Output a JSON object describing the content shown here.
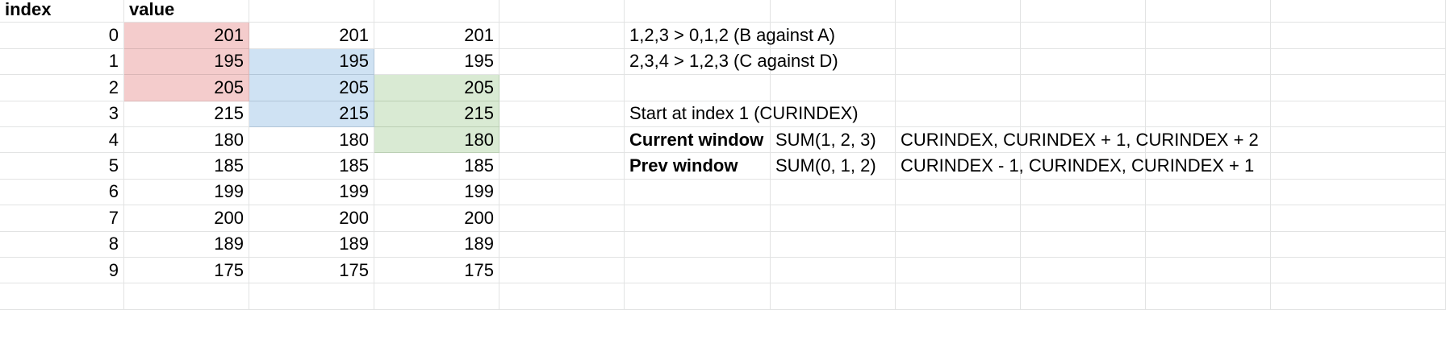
{
  "sheet": {
    "header": {
      "index_label": "index",
      "value_label": "value"
    },
    "rows": [
      {
        "index": "0",
        "value": "201",
        "c": "201",
        "d": "201",
        "f": "1,2,3 > 0,1,2 (B against A)",
        "g": "",
        "h": ""
      },
      {
        "index": "1",
        "value": "195",
        "c": "195",
        "d": "195",
        "f": "2,3,4 > 1,2,3 (C against D)",
        "g": "",
        "h": ""
      },
      {
        "index": "2",
        "value": "205",
        "c": "205",
        "d": "205",
        "f": "",
        "g": "",
        "h": ""
      },
      {
        "index": "3",
        "value": "215",
        "c": "215",
        "d": "215",
        "f": "Start at index 1 (CURINDEX)",
        "g": "",
        "h": ""
      },
      {
        "index": "4",
        "value": "180",
        "c": "180",
        "d": "180",
        "f": "Current window",
        "g": "SUM(1, 2, 3)",
        "h": "CURINDEX, CURINDEX + 1, CURINDEX + 2"
      },
      {
        "index": "5",
        "value": "185",
        "c": "185",
        "d": "185",
        "f": "Prev window",
        "g": "SUM(0, 1, 2)",
        "h": "CURINDEX - 1, CURINDEX, CURINDEX + 1"
      },
      {
        "index": "6",
        "value": "199",
        "c": "199",
        "d": "199",
        "f": "",
        "g": "",
        "h": ""
      },
      {
        "index": "7",
        "value": "200",
        "c": "200",
        "d": "200",
        "f": "",
        "g": "",
        "h": ""
      },
      {
        "index": "8",
        "value": "189",
        "c": "189",
        "d": "189",
        "f": "",
        "g": "",
        "h": ""
      },
      {
        "index": "9",
        "value": "175",
        "c": "175",
        "d": "175",
        "f": "",
        "g": "",
        "h": ""
      }
    ],
    "highlight_colors": {
      "red": "#f4cccc",
      "blue": "#cfe2f3",
      "green": "#d9ead3"
    },
    "highlights": {
      "value": {
        "color": "red",
        "rows": [
          0,
          1,
          2
        ]
      },
      "c": {
        "color": "blue",
        "rows": [
          1,
          2,
          3
        ]
      },
      "d": {
        "color": "green",
        "rows": [
          2,
          3,
          4
        ]
      }
    },
    "bold_cells": [
      {
        "row": 4,
        "col": "f"
      },
      {
        "row": 5,
        "col": "f"
      }
    ]
  }
}
